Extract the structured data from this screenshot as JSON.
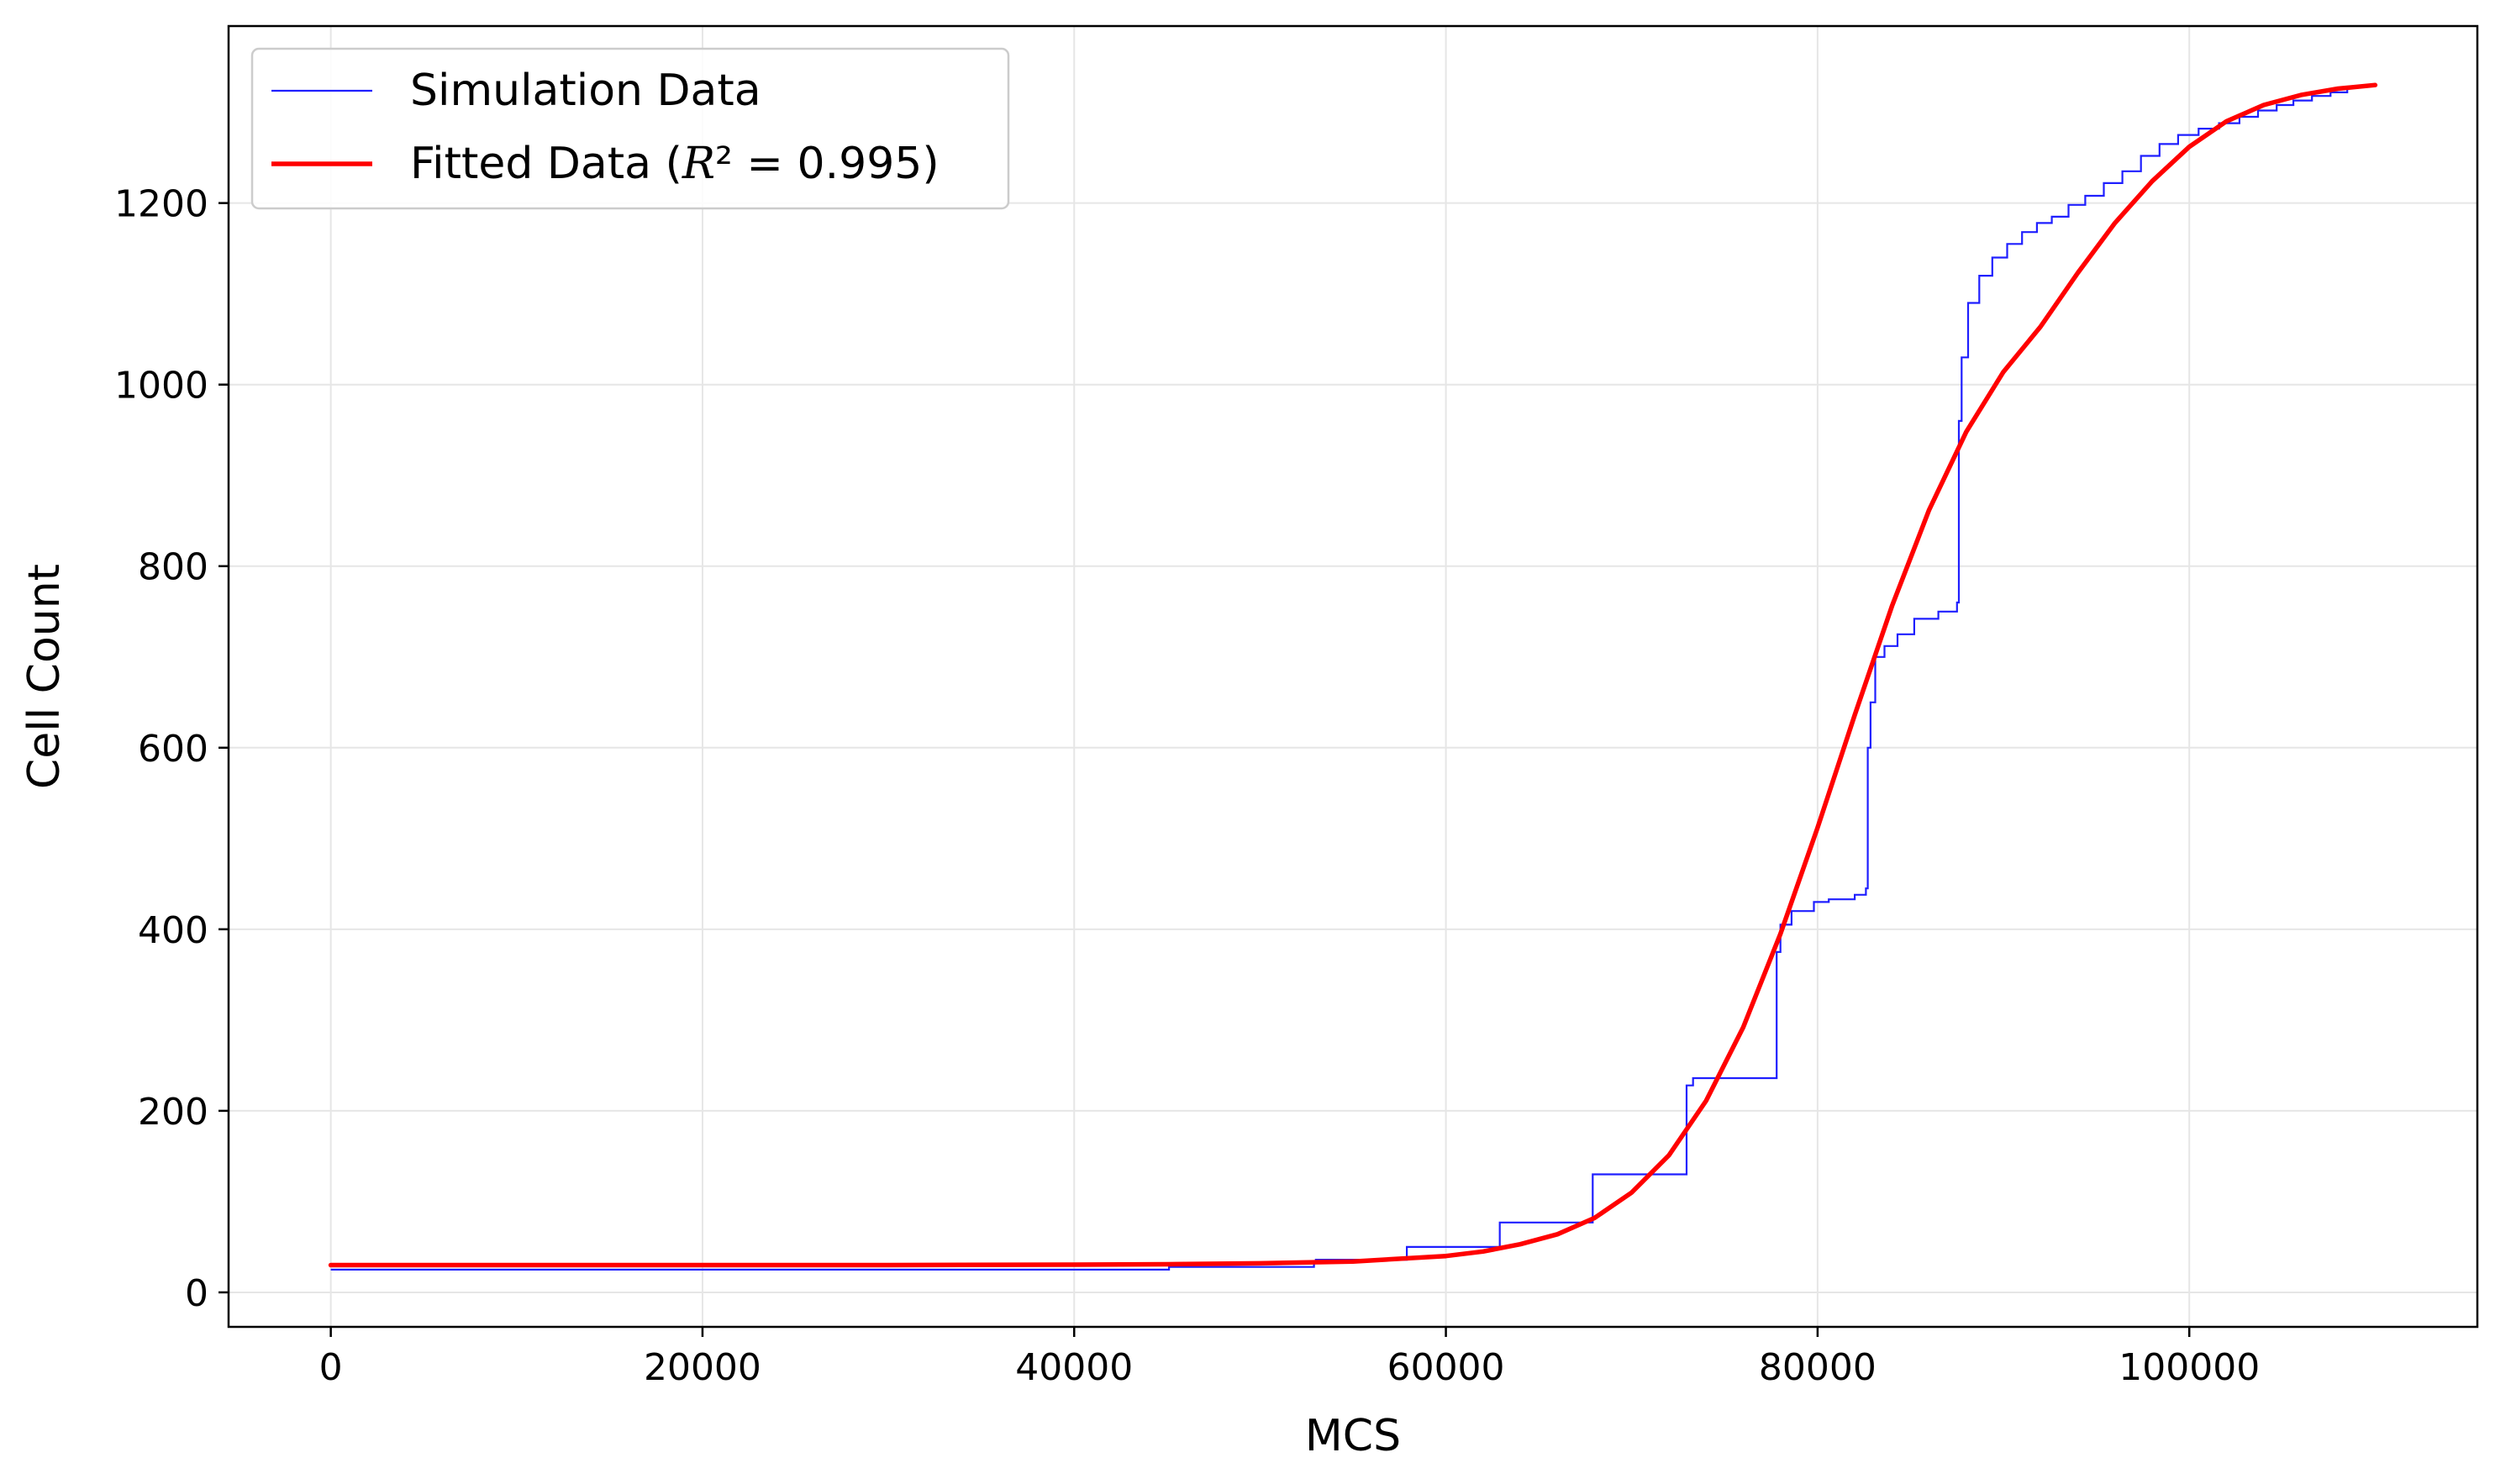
{
  "chart_data": {
    "type": "line",
    "title": "",
    "xlabel": "MCS",
    "ylabel": "Cell Count",
    "xlim": [
      -5500,
      115500
    ],
    "ylim": [
      -38,
      1395
    ],
    "xticks": [
      0,
      20000,
      40000,
      60000,
      80000,
      100000
    ],
    "xtick_labels": [
      "0",
      "20000",
      "40000",
      "60000",
      "80000",
      "100000"
    ],
    "yticks": [
      0,
      200,
      400,
      600,
      800,
      1000,
      1200
    ],
    "ytick_labels": [
      "0",
      "200",
      "400",
      "600",
      "800",
      "1000",
      "1200"
    ],
    "grid": true,
    "legend_position": "top-left",
    "legend": {
      "simulation_label": "Simulation Data",
      "fitted_prefix": "Fitted Data (",
      "fitted_var": "R",
      "fitted_rest": "² = 0.995)"
    },
    "colors": {
      "simulation": "#1f1fff",
      "fitted": "#ff0000",
      "grid": "#e6e6e6"
    },
    "series": [
      {
        "name": "Simulation Data",
        "style": "step",
        "x": [
          0,
          45000,
          45100,
          48000,
          52900,
          53000,
          57800,
          57900,
          62800,
          62900,
          67800,
          67900,
          72800,
          72950,
          73300,
          77700,
          77800,
          78000,
          78600,
          79800,
          80600,
          82000,
          82600,
          82700,
          82850,
          83100,
          83600,
          84300,
          85200,
          86500,
          87500,
          87600,
          87750,
          88100,
          88700,
          89400,
          90200,
          91000,
          91800,
          92600,
          93500,
          94400,
          95400,
          96400,
          97400,
          98400,
          99400,
          100500,
          101600,
          102700,
          103700,
          104700,
          105600,
          106600,
          107600,
          108500
        ],
        "y": [
          25,
          25,
          28,
          28,
          33,
          36,
          36,
          50,
          50,
          77,
          77,
          130,
          130,
          228,
          236,
          236,
          375,
          405,
          420,
          430,
          433,
          438,
          445,
          600,
          650,
          700,
          712,
          725,
          742,
          750,
          760,
          960,
          1030,
          1090,
          1120,
          1140,
          1155,
          1168,
          1178,
          1185,
          1198,
          1208,
          1222,
          1235,
          1252,
          1265,
          1275,
          1282,
          1288,
          1295,
          1302,
          1308,
          1313,
          1318,
          1322,
          1328
        ]
      },
      {
        "name": "Fitted Data (R² = 0.995)",
        "style": "logistic",
        "x": [
          0,
          10000,
          20000,
          30000,
          40000,
          45000,
          50000,
          55000,
          60000,
          62000,
          64000,
          66000,
          68000,
          70000,
          72000,
          74000,
          76000,
          78000,
          80000,
          82000,
          84000,
          86000,
          88000,
          90000,
          92000,
          94000,
          96000,
          98000,
          100000,
          102000,
          104000,
          106000,
          108000,
          110000
        ],
        "y": [
          30,
          30,
          30,
          30,
          30.5,
          31,
          32,
          34,
          40,
          45,
          53,
          64,
          82,
          110,
          151,
          211,
          292,
          395,
          512,
          636,
          756,
          862,
          948,
          1014,
          1064,
          1123,
          1178,
          1224,
          1262,
          1290,
          1308,
          1319,
          1326,
          1330
        ]
      }
    ]
  }
}
